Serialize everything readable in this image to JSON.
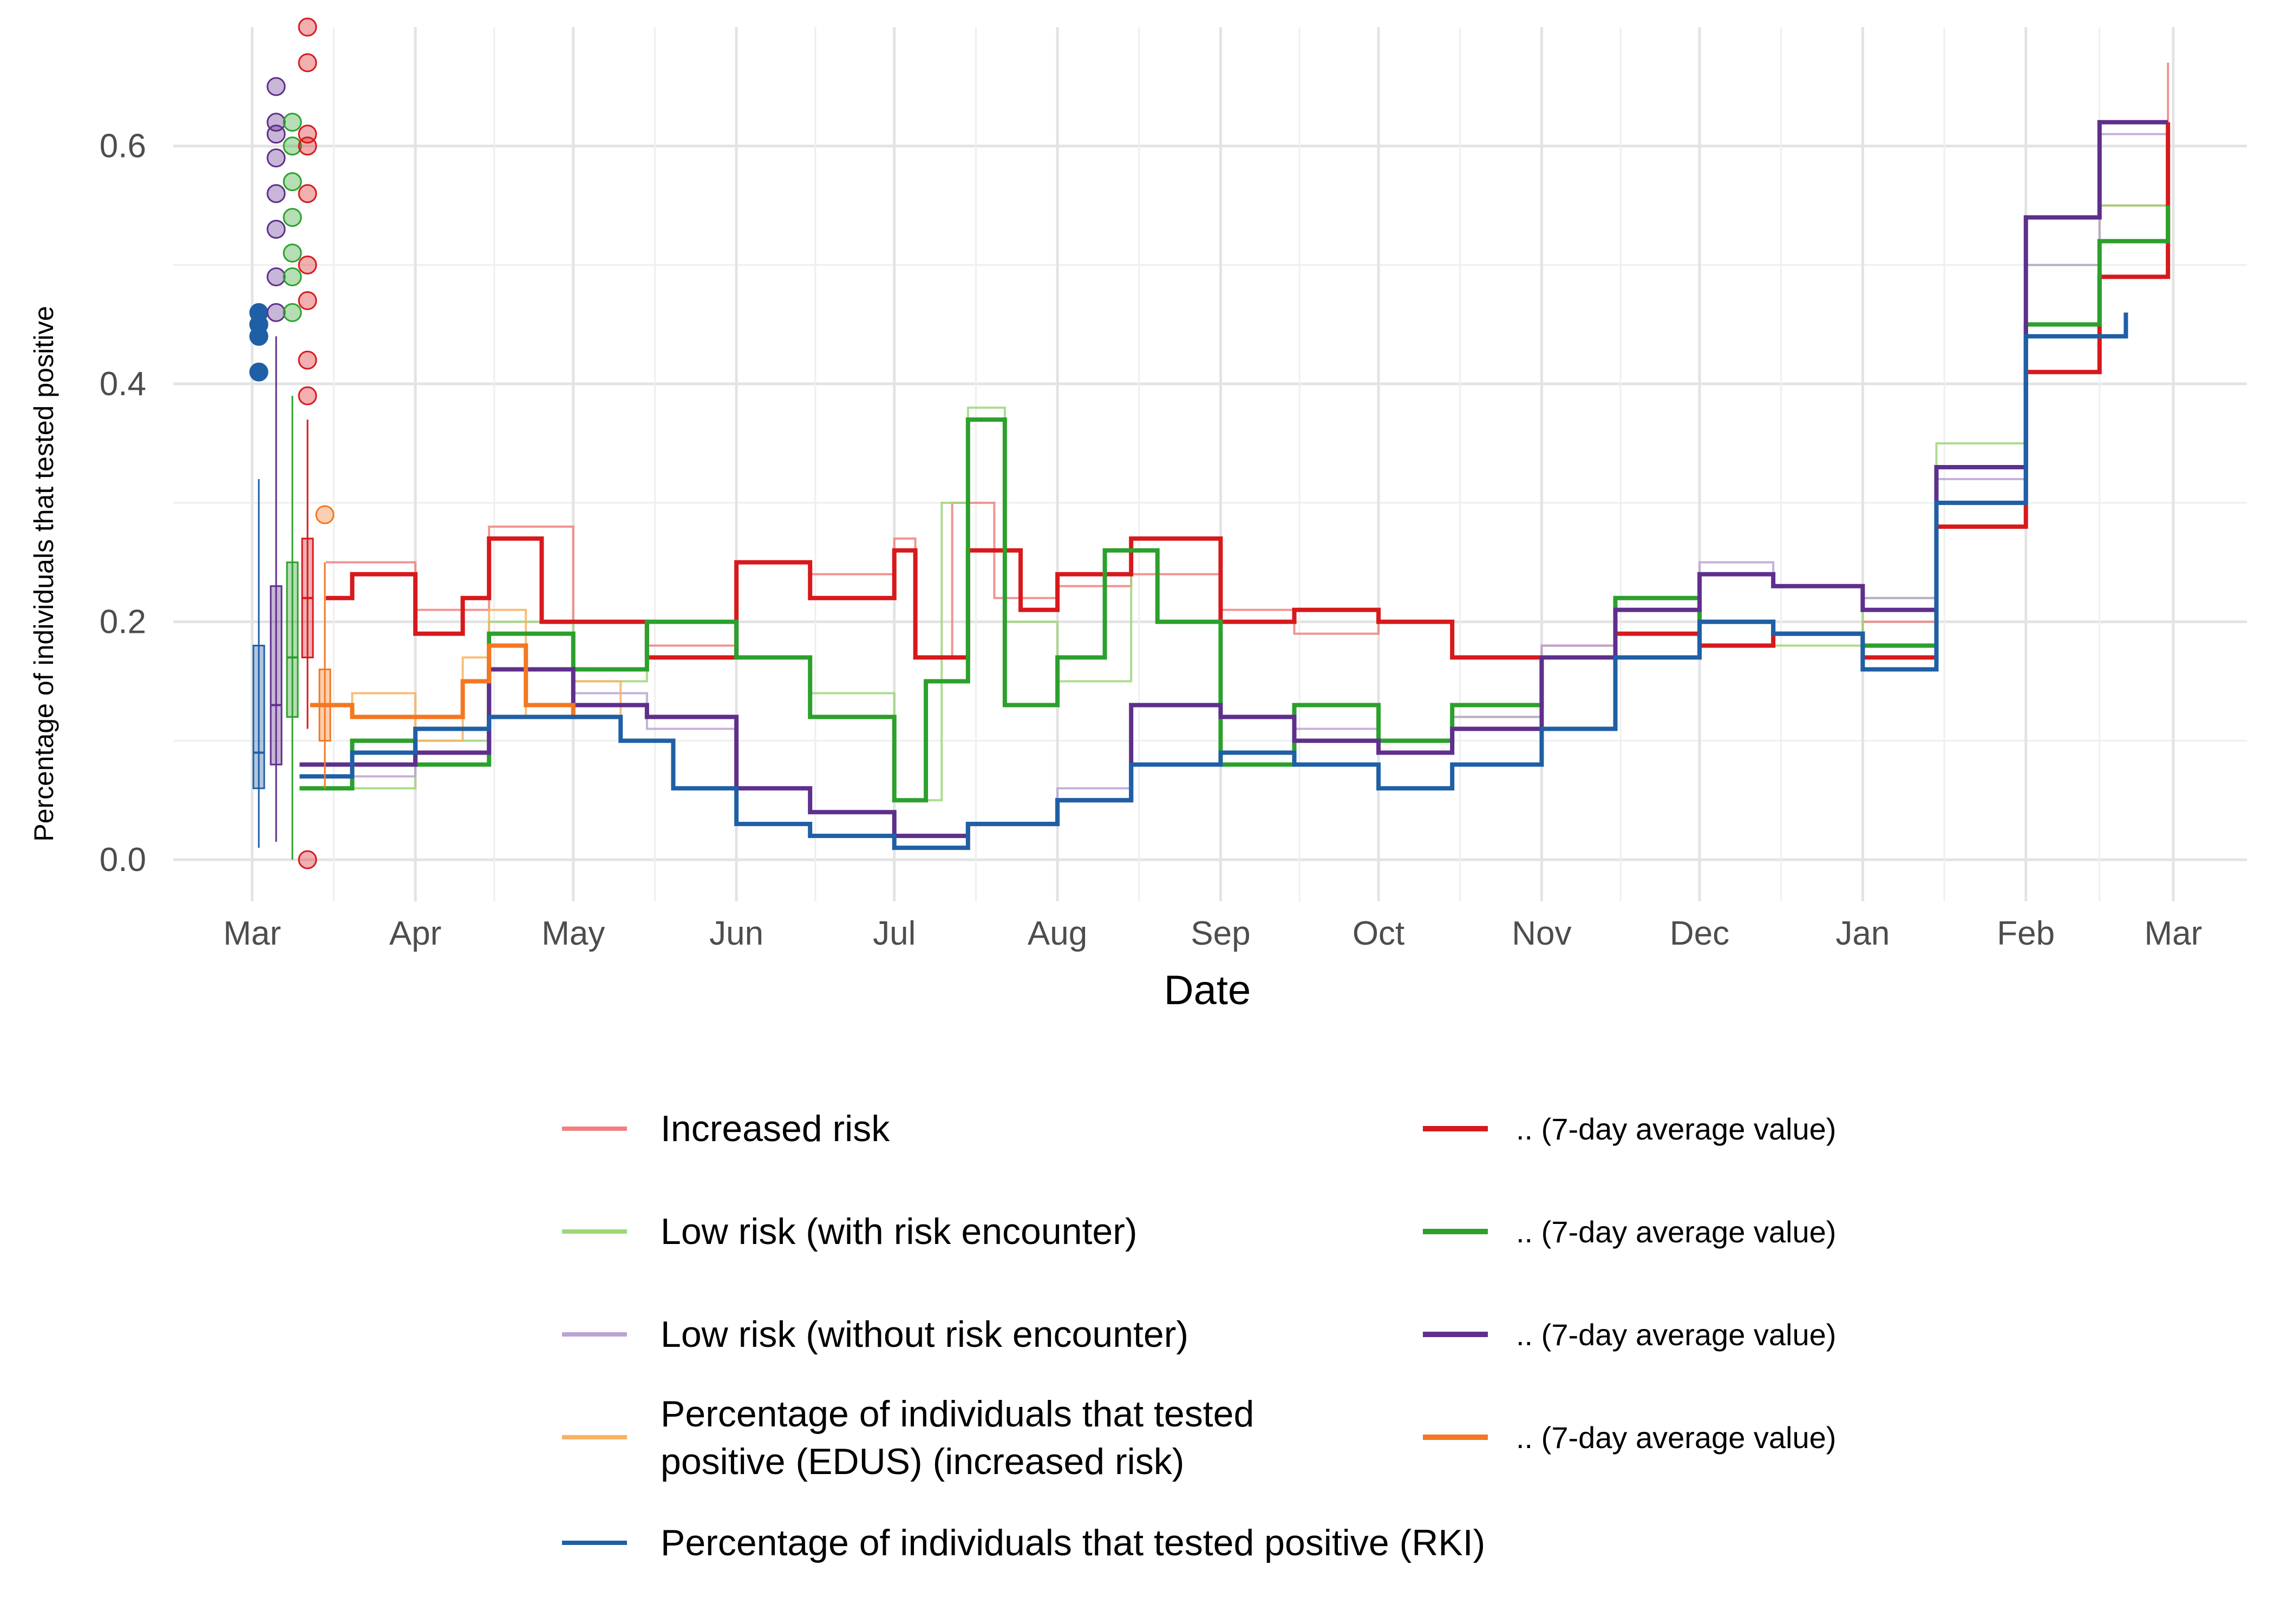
{
  "chart_data": {
    "type": "line",
    "xlabel": "Date",
    "ylabel": "Percentage of individuals that tested positive",
    "x_tick_labels": [
      "Mar",
      "Apr",
      "May",
      "Jun",
      "Jul",
      "Aug",
      "Sep",
      "Oct",
      "Nov",
      "Dec",
      "Jan",
      "Feb",
      "Mar"
    ],
    "x_ticks": [
      "2020-03-01",
      "2020-04-01",
      "2020-05-01",
      "2020-06-01",
      "2020-07-01",
      "2020-08-01",
      "2020-09-01",
      "2020-10-01",
      "2020-11-01",
      "2020-12-01",
      "2021-01-01",
      "2021-02-01",
      "2021-03-01"
    ],
    "xlim": [
      "2020-02-15",
      "2021-03-15"
    ],
    "ylim": [
      -0.035,
      0.7
    ],
    "y_ticks": [
      0.0,
      0.2,
      0.4,
      0.6
    ],
    "y_tick_labels": [
      "0.0",
      "0.2",
      "0.4",
      "0.6"
    ],
    "grid": true,
    "legend_position": "bottom",
    "series": [
      {
        "name": "Increased risk",
        "style": "thin",
        "color": "#f08080",
        "x": [
          "2020-03-15",
          "2020-04-01",
          "2020-04-15",
          "2020-05-01",
          "2020-05-15",
          "2020-06-01",
          "2020-06-15",
          "2020-07-01",
          "2020-07-05",
          "2020-07-12",
          "2020-07-20",
          "2020-08-01",
          "2020-08-15",
          "2020-09-01",
          "2020-09-15",
          "2020-10-01",
          "2020-10-15",
          "2020-11-01",
          "2020-11-15",
          "2020-12-01",
          "2020-12-15",
          "2021-01-01",
          "2021-01-15",
          "2021-02-01",
          "2021-02-15",
          "2021-02-28"
        ],
        "y": [
          0.25,
          0.21,
          0.28,
          0.2,
          0.18,
          0.25,
          0.24,
          0.27,
          0.17,
          0.3,
          0.22,
          0.23,
          0.24,
          0.21,
          0.19,
          0.2,
          0.17,
          0.18,
          0.19,
          0.18,
          0.19,
          0.2,
          0.33,
          0.45,
          0.55,
          0.67
        ]
      },
      {
        "name": "Low risk (with risk encounter)",
        "style": "thin",
        "color": "#9ed67a",
        "x": [
          "2020-03-15",
          "2020-04-01",
          "2020-04-15",
          "2020-05-01",
          "2020-05-15",
          "2020-06-01",
          "2020-06-15",
          "2020-07-01",
          "2020-07-10",
          "2020-07-15",
          "2020-07-22",
          "2020-08-01",
          "2020-08-15",
          "2020-09-01",
          "2020-09-15",
          "2020-10-01",
          "2020-10-15",
          "2020-11-01",
          "2020-11-15",
          "2020-12-01",
          "2020-12-15",
          "2021-01-01",
          "2021-01-15",
          "2021-02-01",
          "2021-02-15",
          "2021-02-28"
        ],
        "y": [
          0.06,
          0.1,
          0.2,
          0.15,
          0.2,
          0.17,
          0.14,
          0.05,
          0.3,
          0.38,
          0.2,
          0.15,
          0.27,
          0.12,
          0.1,
          0.1,
          0.12,
          0.17,
          0.22,
          0.2,
          0.18,
          0.22,
          0.35,
          0.5,
          0.55,
          0.55
        ]
      },
      {
        "name": "Low risk (without risk encounter)",
        "style": "thin",
        "color": "#bba3d3",
        "x": [
          "2020-03-15",
          "2020-04-01",
          "2020-04-15",
          "2020-05-01",
          "2020-05-15",
          "2020-06-01",
          "2020-06-15",
          "2020-07-01",
          "2020-07-15",
          "2020-08-01",
          "2020-08-15",
          "2020-09-01",
          "2020-09-15",
          "2020-10-01",
          "2020-10-15",
          "2020-11-01",
          "2020-11-15",
          "2020-12-01",
          "2020-12-15",
          "2021-01-01",
          "2021-01-15",
          "2021-02-01",
          "2021-02-15",
          "2021-02-28"
        ],
        "y": [
          0.07,
          0.09,
          0.16,
          0.14,
          0.11,
          0.06,
          0.04,
          0.02,
          0.03,
          0.06,
          0.13,
          0.12,
          0.11,
          0.09,
          0.12,
          0.18,
          0.22,
          0.25,
          0.23,
          0.22,
          0.32,
          0.5,
          0.61,
          0.62
        ]
      },
      {
        "name": "Percentage of individuals that tested positive  (EDUS) (increased risk)",
        "style": "thin",
        "color": "#f8b262",
        "x": [
          "2020-03-12",
          "2020-03-20",
          "2020-04-01",
          "2020-04-10",
          "2020-04-15",
          "2020-04-22",
          "2020-05-01",
          "2020-05-10"
        ],
        "y": [
          0.13,
          0.14,
          0.1,
          0.17,
          0.21,
          0.12,
          0.15,
          0.1
        ]
      },
      {
        "name": ".. (7-day average value)",
        "style": "bold",
        "color": "#d7191c",
        "x": [
          "2020-03-15",
          "2020-03-20",
          "2020-04-01",
          "2020-04-10",
          "2020-04-15",
          "2020-04-25",
          "2020-05-01",
          "2020-05-15",
          "2020-06-01",
          "2020-06-15",
          "2020-07-01",
          "2020-07-05",
          "2020-07-15",
          "2020-07-25",
          "2020-08-01",
          "2020-08-15",
          "2020-09-01",
          "2020-09-15",
          "2020-10-01",
          "2020-10-15",
          "2020-11-01",
          "2020-11-15",
          "2020-12-01",
          "2020-12-15",
          "2021-01-01",
          "2021-01-15",
          "2021-02-01",
          "2021-02-15",
          "2021-02-28"
        ],
        "y": [
          0.22,
          0.24,
          0.19,
          0.22,
          0.27,
          0.2,
          0.2,
          0.17,
          0.25,
          0.22,
          0.26,
          0.17,
          0.26,
          0.21,
          0.24,
          0.27,
          0.2,
          0.21,
          0.2,
          0.17,
          0.17,
          0.19,
          0.18,
          0.19,
          0.17,
          0.28,
          0.41,
          0.49,
          0.62
        ]
      },
      {
        "name": ".. (7-day average value)",
        "style": "bold",
        "color": "#2ca02c",
        "x": [
          "2020-03-10",
          "2020-03-20",
          "2020-04-01",
          "2020-04-15",
          "2020-05-01",
          "2020-05-15",
          "2020-06-01",
          "2020-06-15",
          "2020-07-01",
          "2020-07-07",
          "2020-07-15",
          "2020-07-22",
          "2020-08-01",
          "2020-08-10",
          "2020-08-20",
          "2020-09-01",
          "2020-09-15",
          "2020-10-01",
          "2020-10-15",
          "2020-11-01",
          "2020-11-15",
          "2020-12-01",
          "2020-12-15",
          "2021-01-01",
          "2021-01-15",
          "2021-02-01",
          "2021-02-15",
          "2021-02-28"
        ],
        "y": [
          0.06,
          0.1,
          0.08,
          0.19,
          0.16,
          0.2,
          0.17,
          0.12,
          0.05,
          0.15,
          0.37,
          0.13,
          0.17,
          0.26,
          0.2,
          0.08,
          0.13,
          0.1,
          0.13,
          0.17,
          0.22,
          0.2,
          0.19,
          0.18,
          0.33,
          0.45,
          0.52,
          0.55
        ]
      },
      {
        "name": ".. (7-day average value)",
        "style": "bold",
        "color": "#5e2f8c",
        "x": [
          "2020-03-10",
          "2020-03-20",
          "2020-04-01",
          "2020-04-15",
          "2020-05-01",
          "2020-05-15",
          "2020-06-01",
          "2020-06-15",
          "2020-07-01",
          "2020-07-15",
          "2020-08-01",
          "2020-08-15",
          "2020-09-01",
          "2020-09-15",
          "2020-10-01",
          "2020-10-15",
          "2020-11-01",
          "2020-11-15",
          "2020-12-01",
          "2020-12-15",
          "2021-01-01",
          "2021-01-15",
          "2021-02-01",
          "2021-02-15",
          "2021-02-28"
        ],
        "y": [
          0.08,
          0.08,
          0.09,
          0.16,
          0.13,
          0.12,
          0.06,
          0.04,
          0.02,
          0.03,
          0.05,
          0.13,
          0.12,
          0.1,
          0.09,
          0.11,
          0.17,
          0.21,
          0.24,
          0.23,
          0.21,
          0.33,
          0.54,
          0.62,
          0.62
        ]
      },
      {
        "name": ".. (7-day average value)",
        "style": "bold",
        "color": "#f47721",
        "x": [
          "2020-03-12",
          "2020-03-20",
          "2020-04-01",
          "2020-04-10",
          "2020-04-15",
          "2020-04-22",
          "2020-05-01",
          "2020-05-10"
        ],
        "y": [
          0.13,
          0.12,
          0.12,
          0.15,
          0.18,
          0.13,
          0.12,
          0.12
        ]
      },
      {
        "name": "Percentage of individuals that tested positive (RKI)",
        "style": "step",
        "color": "#1f5fa5",
        "x": [
          "2020-03-10",
          "2020-03-20",
          "2020-04-01",
          "2020-04-15",
          "2020-05-01",
          "2020-05-10",
          "2020-05-20",
          "2020-06-01",
          "2020-06-15",
          "2020-07-01",
          "2020-07-15",
          "2020-08-01",
          "2020-08-15",
          "2020-09-01",
          "2020-09-15",
          "2020-10-01",
          "2020-10-15",
          "2020-11-01",
          "2020-11-15",
          "2020-12-01",
          "2020-12-15",
          "2021-01-01",
          "2021-01-15",
          "2021-02-01",
          "2021-02-20"
        ],
        "y": [
          0.07,
          0.09,
          0.11,
          0.12,
          0.12,
          0.1,
          0.06,
          0.03,
          0.02,
          0.01,
          0.03,
          0.05,
          0.08,
          0.09,
          0.08,
          0.06,
          0.08,
          0.11,
          0.17,
          0.2,
          0.19,
          0.16,
          0.3,
          0.44,
          0.46
        ]
      }
    ],
    "boxplots": [
      {
        "group": "Percentage of individuals that tested positive (RKI)",
        "color": "#1f5fa5",
        "min": 0.01,
        "q1": 0.06,
        "median": 0.09,
        "q3": 0.18,
        "max": 0.32,
        "outliers": [
          0.41,
          0.44,
          0.45,
          0.46
        ]
      },
      {
        "group": "Low risk (without risk encounter)",
        "color": "#5e2f8c",
        "min": 0.015,
        "q1": 0.08,
        "median": 0.13,
        "q3": 0.23,
        "max": 0.44,
        "outliers": [
          0.46,
          0.49,
          0.53,
          0.56,
          0.59,
          0.61,
          0.62,
          0.65
        ]
      },
      {
        "group": "Low risk (with risk encounter)",
        "color": "#2ca02c",
        "min": 0.0,
        "q1": 0.12,
        "median": 0.17,
        "q3": 0.25,
        "max": 0.39,
        "outliers": [
          0.46,
          0.49,
          0.51,
          0.54,
          0.57,
          0.6,
          0.62
        ]
      },
      {
        "group": "Increased risk",
        "color": "#d7191c",
        "min": 0.11,
        "q1": 0.17,
        "median": 0.22,
        "q3": 0.27,
        "max": 0.37,
        "outliers": [
          0.0,
          0.39,
          0.42,
          0.47,
          0.5,
          0.56,
          0.6,
          0.61,
          0.67,
          0.7
        ]
      },
      {
        "group": "Percentage of individuals that tested positive  (EDUS) (increased risk)",
        "color": "#f47721",
        "min": 0.06,
        "q1": 0.1,
        "median": 0.13,
        "q3": 0.16,
        "max": 0.25,
        "outliers": [
          0.29
        ]
      }
    ]
  },
  "legend": {
    "left": [
      {
        "label": "Increased risk",
        "color": "#f08080"
      },
      {
        "label": "Low risk (with risk encounter)",
        "color": "#9ed67a"
      },
      {
        "label": "Low risk (without risk encounter)",
        "color": "#bba3d3"
      },
      {
        "label": "Percentage of individuals that tested",
        "label2": "positive  (EDUS) (increased risk)",
        "color": "#f8b262"
      },
      {
        "label": "Percentage of individuals that tested positive (RKI)",
        "color": "#1f5fa5"
      }
    ],
    "right": [
      {
        "label": ".. (7-day average value)",
        "color": "#d7191c"
      },
      {
        "label": ".. (7-day average value)",
        "color": "#2ca02c"
      },
      {
        "label": ".. (7-day average value)",
        "color": "#5e2f8c"
      },
      {
        "label": ".. (7-day average value)",
        "color": "#f47721"
      }
    ]
  }
}
